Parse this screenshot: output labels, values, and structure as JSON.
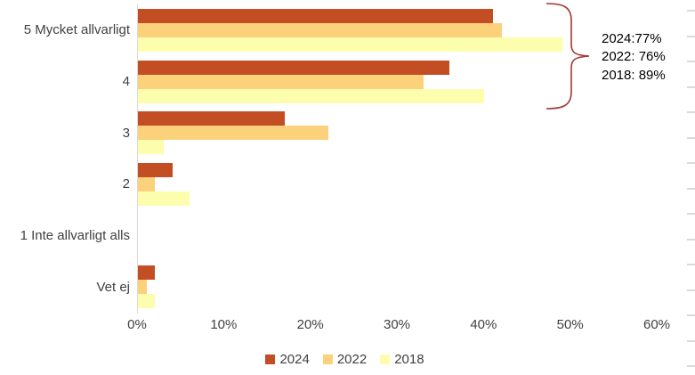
{
  "chart_data": {
    "type": "bar",
    "orientation": "horizontal",
    "title": "",
    "categories": [
      "5 Mycket allvarligt",
      "4",
      "3",
      "2",
      "1 Inte allvarligt alls",
      "Vet ej"
    ],
    "series": [
      {
        "name": "2024",
        "color": "#C44E24",
        "values": [
          41,
          36,
          17,
          4,
          0,
          2
        ]
      },
      {
        "name": "2022",
        "color": "#FCD17C",
        "values": [
          42,
          33,
          22,
          2,
          0,
          1
        ]
      },
      {
        "name": "2018",
        "color": "#FDFDAE",
        "values": [
          49,
          40,
          3,
          6,
          0,
          2
        ]
      }
    ],
    "x_axis": {
      "min": 0,
      "max": 60,
      "tick_step": 10,
      "tick_labels": [
        "0%",
        "10%",
        "20%",
        "30%",
        "40%",
        "50%",
        "60%"
      ]
    },
    "grid": "off",
    "legend": {
      "position": "bottom",
      "entries": [
        "2024",
        "2022",
        "2018"
      ]
    },
    "annotation": {
      "lines": [
        "2024:77%",
        "2022: 76%",
        "2018: 89%"
      ],
      "brace_color": "#9E3931",
      "text_color": "#000000"
    }
  },
  "colors": {
    "background": "#FFFFFF",
    "axis_line": "#D9D9D9",
    "axis_text": "#404040",
    "sheet_row_mark": "#DADADA"
  }
}
